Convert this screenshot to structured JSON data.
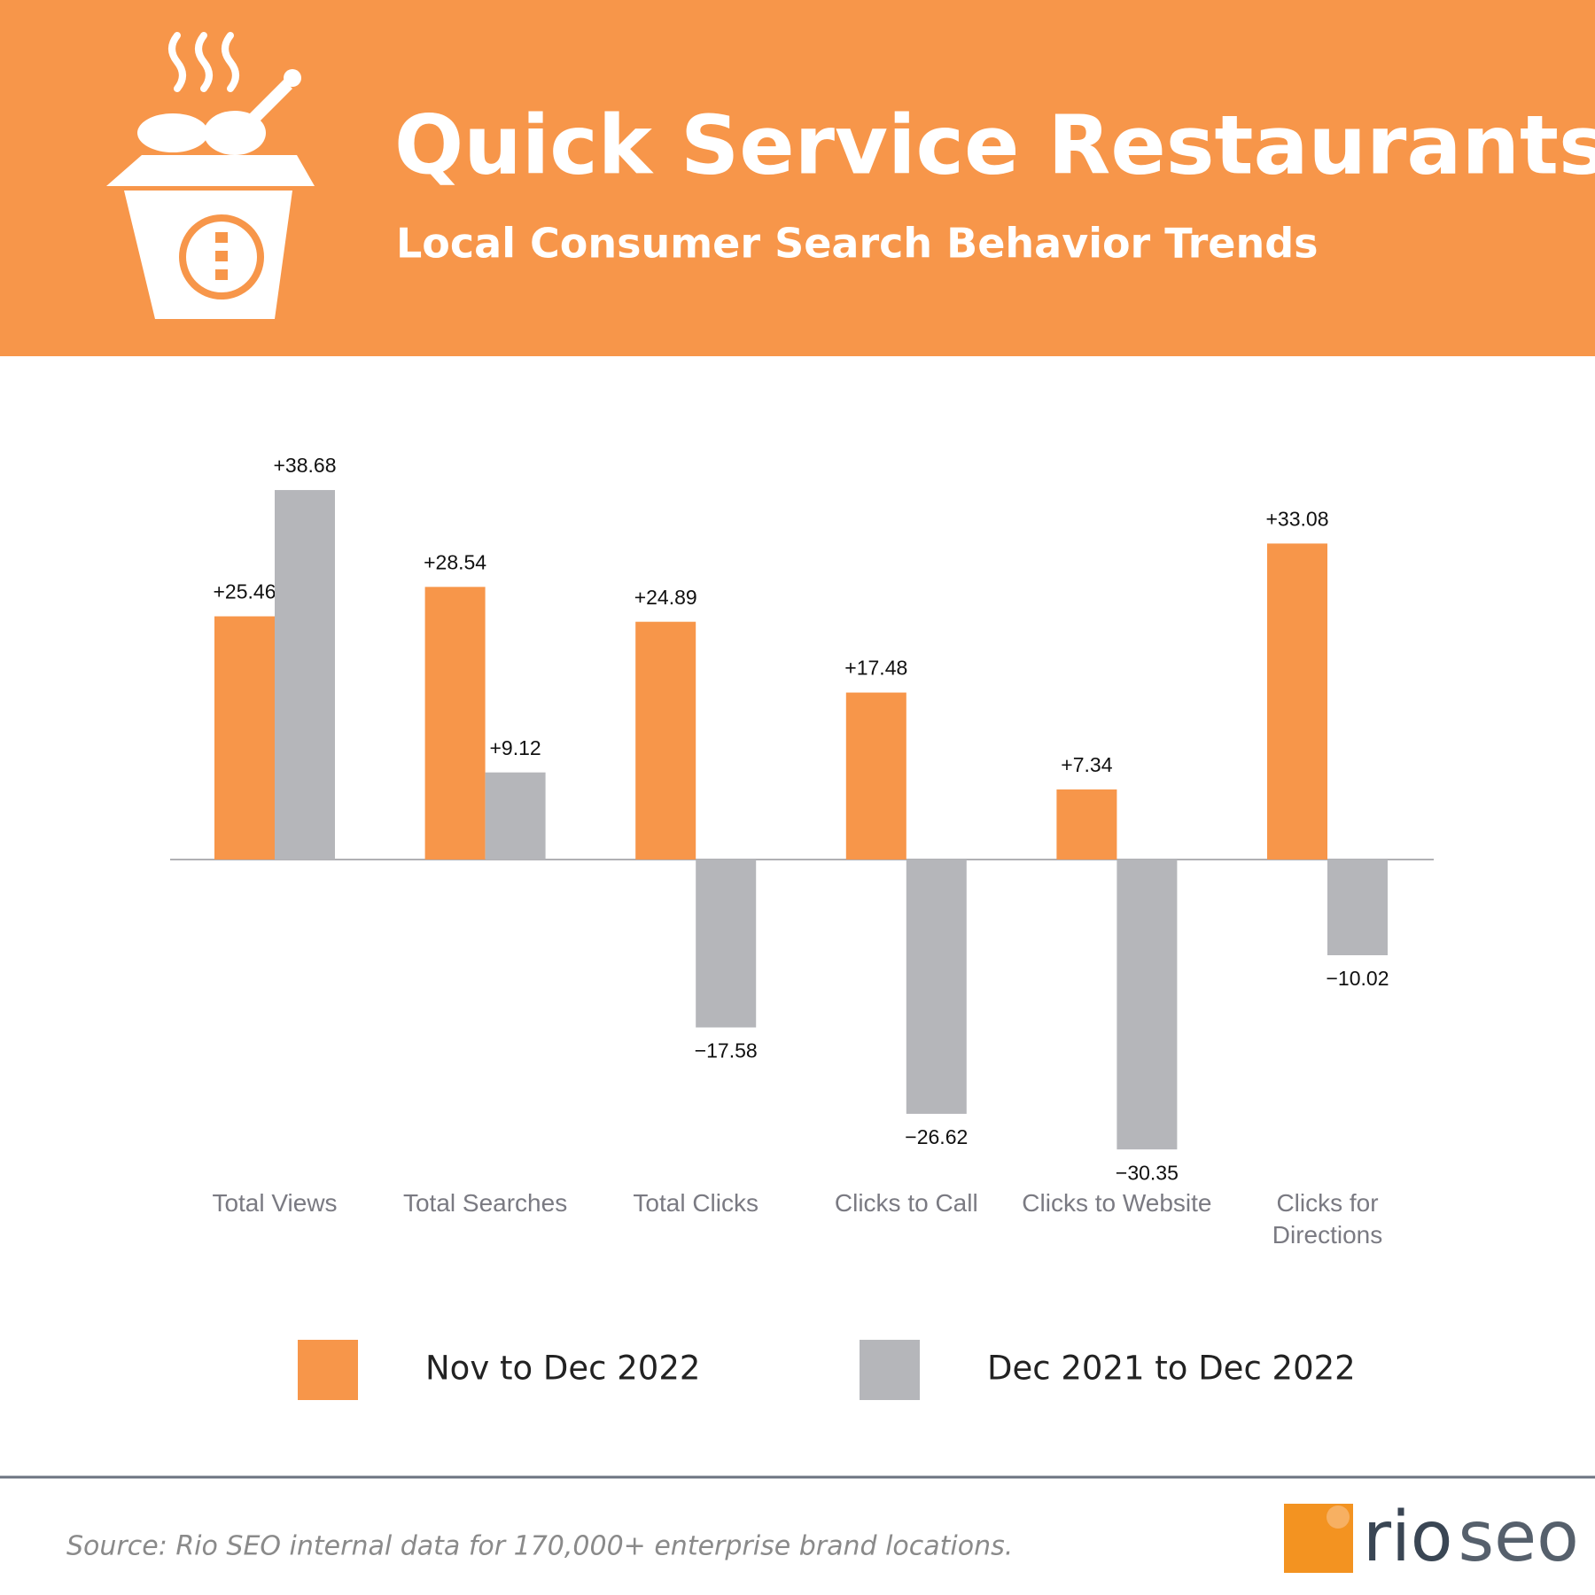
{
  "header": {
    "title": "Quick Service Restaurants",
    "subtitle": "Local Consumer Search Behavior Trends"
  },
  "chart_data": {
    "type": "bar",
    "categories": [
      "Total Views",
      "Total Searches",
      "Total Clicks",
      "Clicks to Call",
      "Clicks to Website",
      "Clicks for Directions"
    ],
    "series": [
      {
        "name": "Nov to Dec 2022",
        "color": "#F7964A",
        "values": [
          25.46,
          28.54,
          24.89,
          17.48,
          7.34,
          33.08
        ],
        "value_labels": [
          "+25.46",
          "+28.54",
          "+24.89",
          "+17.48",
          "+7.34",
          "+33.08"
        ]
      },
      {
        "name": "Dec 2021 to Dec 2022",
        "color": "#B5B6BA",
        "values": [
          38.68,
          9.12,
          -17.58,
          -26.62,
          -30.35,
          -10.02
        ],
        "value_labels": [
          "+38.68",
          "+9.12",
          "−17.58",
          "−26.62",
          "−30.35",
          "−10.02"
        ]
      }
    ]
  },
  "footer": {
    "source": "Source: Rio SEO internal data for 170,000+ enterprise brand locations.",
    "logo_primary": "rio",
    "logo_secondary": "seo"
  }
}
